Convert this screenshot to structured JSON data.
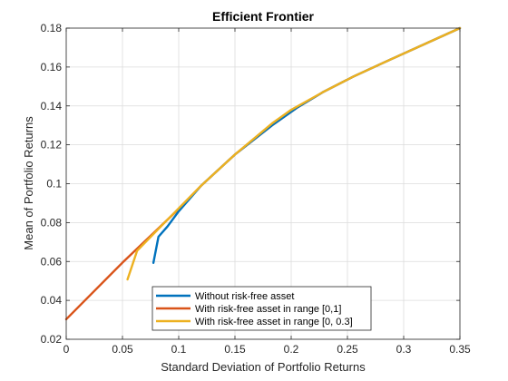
{
  "chart_data": {
    "type": "line",
    "title": "Efficient  Frontier",
    "xlabel": "Standard Deviation of Portfolio Returns",
    "ylabel": "Mean of Portfolio Returns",
    "xlim": [
      0,
      0.35
    ],
    "ylim": [
      0.02,
      0.18
    ],
    "x_ticks": [
      0,
      0.05,
      0.1,
      0.15,
      0.2,
      0.25,
      0.3,
      0.35
    ],
    "y_ticks": [
      0.02,
      0.04,
      0.06,
      0.08,
      0.1,
      0.12,
      0.14,
      0.16,
      0.18
    ],
    "x_tick_labels": [
      "0",
      "0.05",
      "0.1",
      "0.15",
      "0.2",
      "0.25",
      "0.3",
      "0.35"
    ],
    "y_tick_labels": [
      "0.02",
      "0.04",
      "0.06",
      "0.08",
      "0.1",
      "0.12",
      "0.14",
      "0.16",
      "0.18"
    ],
    "grid": true,
    "legend_position": "bottom-center",
    "series": [
      {
        "name": "Without risk-free asset",
        "color": "#0072BD",
        "x": [
          0.0775,
          0.082,
          0.09,
          0.1,
          0.12,
          0.15,
          0.183,
          0.205,
          0.228,
          0.255,
          0.285,
          0.35
        ],
        "y": [
          0.0593,
          0.0727,
          0.078,
          0.0858,
          0.099,
          0.115,
          0.13,
          0.139,
          0.147,
          0.155,
          0.163,
          0.18
        ]
      },
      {
        "name": "With risk-free asset in range [0,1]",
        "color": "#D95319",
        "x": [
          0,
          0.05,
          0.1,
          0.12,
          0.15,
          0.183,
          0.205,
          0.228,
          0.255,
          0.285,
          0.35
        ],
        "y": [
          0.0303,
          0.0594,
          0.087,
          0.099,
          0.115,
          0.13,
          0.139,
          0.147,
          0.155,
          0.163,
          0.18
        ]
      },
      {
        "name": "With risk-free asset in range [0, 0.3]",
        "color": "#EDB120",
        "x": [
          0.0545,
          0.063,
          0.09,
          0.12,
          0.15,
          0.183,
          0.2,
          0.228,
          0.255,
          0.285,
          0.35
        ],
        "y": [
          0.0508,
          0.0655,
          0.0815,
          0.099,
          0.115,
          0.131,
          0.138,
          0.147,
          0.155,
          0.163,
          0.18
        ]
      }
    ]
  }
}
